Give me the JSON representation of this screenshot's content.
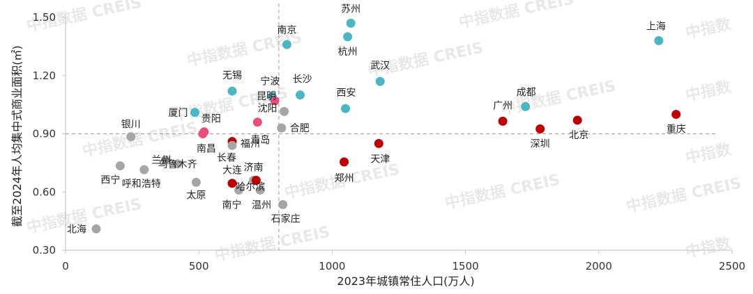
{
  "watermark": {
    "text": "中指数据 CREIS",
    "alt": "中指数"
  },
  "colors": {
    "teal": "#4ab8c4",
    "red": "#c00000",
    "pink": "#e8507a",
    "gray": "#a6a6a6"
  },
  "chart_data": {
    "type": "scatter",
    "xlabel": "2023年城镇常住人口(万人)",
    "ylabel": "截至2024年人均集中式商业面积(㎡)",
    "xlim": [
      0,
      2500
    ],
    "ylim": [
      0.3,
      1.5
    ],
    "xticks": [
      "0",
      "500",
      "1000",
      "1500",
      "2000",
      "2500"
    ],
    "yticks": [
      "0.30",
      "0.60",
      "0.90",
      "1.20",
      "1.50"
    ],
    "reference_lines": {
      "x": 800,
      "y": 0.9
    },
    "grid": false,
    "points": [
      {
        "name": "苏州",
        "x": 1070,
        "y": 1.47,
        "color": "teal"
      },
      {
        "name": "杭州",
        "x": 1058,
        "y": 1.4,
        "color": "teal"
      },
      {
        "name": "南京",
        "x": 830,
        "y": 1.36,
        "color": "teal"
      },
      {
        "name": "上海",
        "x": 2225,
        "y": 1.38,
        "color": "teal"
      },
      {
        "name": "武汉",
        "x": 1180,
        "y": 1.17,
        "color": "teal"
      },
      {
        "name": "无锡",
        "x": 625,
        "y": 1.12,
        "color": "teal"
      },
      {
        "name": "长沙",
        "x": 880,
        "y": 1.1,
        "color": "teal"
      },
      {
        "name": "宁波",
        "x": 775,
        "y": 1.09,
        "color": "teal"
      },
      {
        "name": "成都",
        "x": 1725,
        "y": 1.04,
        "color": "teal"
      },
      {
        "name": "西安",
        "x": 1050,
        "y": 1.03,
        "color": "teal"
      },
      {
        "name": "厦门",
        "x": 485,
        "y": 1.01,
        "color": "teal"
      },
      {
        "name": "沈阳",
        "x": 820,
        "y": 1.015,
        "color": "gray"
      },
      {
        "name": "昆明",
        "x": 785,
        "y": 1.07,
        "color": "pink"
      },
      {
        "name": "贵阳",
        "x": 520,
        "y": 0.91,
        "color": "pink"
      },
      {
        "name": "南昌",
        "x": 515,
        "y": 0.9,
        "color": "pink"
      },
      {
        "name": "福州",
        "x": 625,
        "y": 0.86,
        "color": "red"
      },
      {
        "name": "合肥",
        "x": 810,
        "y": 0.93,
        "color": "gray"
      },
      {
        "name": "青岛",
        "x": 720,
        "y": 0.96,
        "color": "pink"
      },
      {
        "name": "银川",
        "x": 245,
        "y": 0.885,
        "color": "gray"
      },
      {
        "name": "广州",
        "x": 1640,
        "y": 0.965,
        "color": "red"
      },
      {
        "name": "深圳",
        "x": 1780,
        "y": 0.925,
        "color": "red"
      },
      {
        "name": "北京",
        "x": 1920,
        "y": 0.97,
        "color": "red"
      },
      {
        "name": "重庆",
        "x": 2290,
        "y": 1.0,
        "color": "red"
      },
      {
        "name": "天津",
        "x": 1175,
        "y": 0.85,
        "color": "red"
      },
      {
        "name": "郑州",
        "x": 1045,
        "y": 0.755,
        "color": "red"
      },
      {
        "name": "长春",
        "x": 625,
        "y": 0.84,
        "color": "gray"
      },
      {
        "name": "兰州",
        "x": 375,
        "y": 0.765,
        "color": "gray"
      },
      {
        "name": "乌鲁木齐",
        "x": 420,
        "y": 0.745,
        "color": "gray"
      },
      {
        "name": "西宁",
        "x": 205,
        "y": 0.735,
        "color": "gray"
      },
      {
        "name": "呼和浩特",
        "x": 295,
        "y": 0.715,
        "color": "gray"
      },
      {
        "name": "济南",
        "x": 705,
        "y": 0.66,
        "color": "gray"
      },
      {
        "name": "大连",
        "x": 625,
        "y": 0.645,
        "color": "red"
      },
      {
        "name": "哈尔滨",
        "x": 715,
        "y": 0.66,
        "color": "red"
      },
      {
        "name": "太原",
        "x": 490,
        "y": 0.65,
        "color": "gray"
      },
      {
        "name": "南宁",
        "x": 650,
        "y": 0.61,
        "color": "gray"
      },
      {
        "name": "温州",
        "x": 730,
        "y": 0.61,
        "color": "gray"
      },
      {
        "name": "石家庄",
        "x": 815,
        "y": 0.535,
        "color": "gray"
      },
      {
        "name": "北海",
        "x": 115,
        "y": 0.41,
        "color": "gray"
      }
    ]
  }
}
